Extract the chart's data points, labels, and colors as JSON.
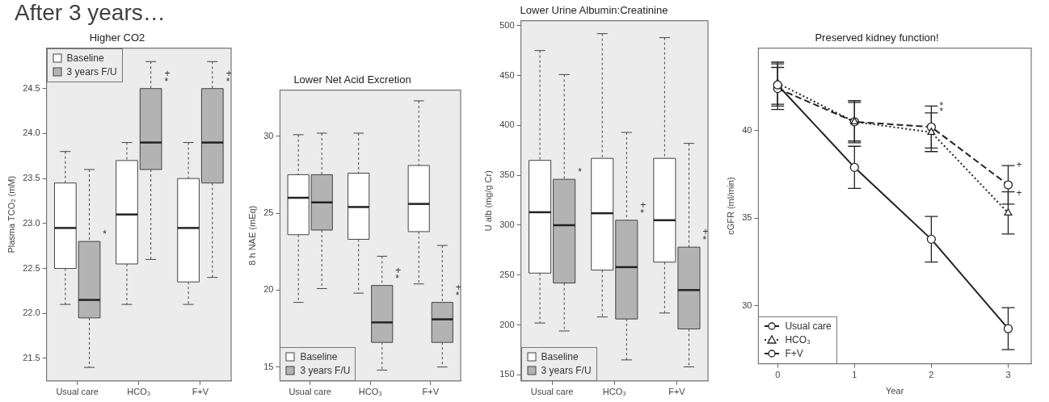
{
  "chart_data": [
    {
      "type": "other",
      "title": "After 3 years…"
    },
    {
      "type": "box",
      "title": "Higher CO2",
      "ylabel": "Plasma TCO₂ (mM)",
      "categories": [
        "Usual care",
        "HCO₃",
        "F+V"
      ],
      "ylim": [
        21.25,
        24.95
      ],
      "yticks": [
        21.5,
        {
          "value": 22,
          "label": "22.0"
        },
        22.5,
        {
          "value": 23,
          "label": "23.0"
        },
        23.5,
        {
          "value": 24,
          "label": "24.0"
        },
        24.5
      ],
      "legend": "top left",
      "series": [
        {
          "name": "Baseline",
          "color": "#ffffff",
          "boxes": [
            {
              "low": 22.1,
              "q1": 22.5,
              "median": 22.95,
              "q3": 23.45,
              "high": 23.8
            },
            {
              "low": 22.1,
              "q1": 22.55,
              "median": 23.1,
              "q3": 23.7,
              "high": 23.9
            },
            {
              "low": 22.1,
              "q1": 22.35,
              "median": 22.95,
              "q3": 23.5,
              "high": 23.9
            }
          ]
        },
        {
          "name": "3 years F/U",
          "color": "#b3b3b3",
          "boxes": [
            {
              "low": 21.4,
              "q1": 21.95,
              "median": 22.15,
              "q3": 22.8,
              "high": 23.6
            },
            {
              "low": 22.6,
              "q1": 23.6,
              "median": 23.9,
              "q3": 24.5,
              "high": 24.8
            },
            {
              "low": 22.4,
              "q1": 23.45,
              "median": 23.9,
              "q3": 24.5,
              "high": 24.8
            }
          ]
        }
      ],
      "annotations": [
        {
          "text": "*",
          "x": "Usual care",
          "y": 22.8
        },
        {
          "text": "+",
          "x": "HCO₃",
          "y": 24.5
        },
        {
          "text": "*",
          "x": "HCO₃",
          "y": 24.5
        },
        {
          "text": "+",
          "x": "F+V",
          "y": 24.5
        },
        {
          "text": "*",
          "x": "F+V",
          "y": 24.5
        }
      ]
    },
    {
      "type": "box",
      "title": "Lower Net Acid Excretion",
      "ylabel": "8 h NAE (mEq)",
      "categories": [
        "Usual care",
        "HCO₃",
        "F+V"
      ],
      "ylim": [
        14.1,
        33
      ],
      "yticks": [
        15,
        20,
        25,
        30
      ],
      "legend": "bottom left",
      "series": [
        {
          "name": "Baseline",
          "color": "#ffffff",
          "boxes": [
            {
              "low": 19.2,
              "q1": 23.6,
              "median": 26.0,
              "q3": 27.5,
              "high": 30.1
            },
            {
              "low": 19.8,
              "q1": 23.3,
              "median": 25.4,
              "q3": 27.6,
              "high": 30.2
            },
            {
              "low": 20.4,
              "q1": 23.8,
              "median": 25.6,
              "q3": 28.1,
              "high": 32.3
            }
          ]
        },
        {
          "name": "3 years F/U",
          "color": "#b3b3b3",
          "boxes": [
            {
              "low": 20.1,
              "q1": 23.9,
              "median": 25.7,
              "q3": 27.5,
              "high": 30.2
            },
            {
              "low": 14.8,
              "q1": 16.6,
              "median": 17.9,
              "q3": 20.3,
              "high": 22.2
            },
            {
              "low": 15.0,
              "q1": 16.6,
              "median": 18.1,
              "q3": 19.2,
              "high": 22.9
            }
          ]
        }
      ],
      "annotations": [
        {
          "text": "+",
          "x": "HCO₃",
          "y": 20.3
        },
        {
          "text": "*",
          "x": "HCO₃",
          "y": 20.3
        },
        {
          "text": "+",
          "x": "F+V",
          "y": 19.2
        },
        {
          "text": "*",
          "x": "F+V",
          "y": 19.2
        }
      ]
    },
    {
      "type": "box",
      "title": "Lower Urine Albumin:Creatinine",
      "ylabel": "U alb (mg/g Cr)",
      "categories": [
        "Usual care",
        "HCO₃",
        "F+V"
      ],
      "ylim": [
        144,
        505
      ],
      "yticks": [
        150,
        200,
        250,
        300,
        350,
        400,
        450,
        500
      ],
      "legend": "bottom left",
      "series": [
        {
          "name": "Baseline",
          "color": "#ffffff",
          "boxes": [
            {
              "low": 202,
              "q1": 252,
              "median": 313,
              "q3": 365,
              "high": 475
            },
            {
              "low": 208,
              "q1": 255,
              "median": 312,
              "q3": 367,
              "high": 492
            },
            {
              "low": 212,
              "q1": 263,
              "median": 305,
              "q3": 367,
              "high": 488
            }
          ]
        },
        {
          "name": "3 years F/U",
          "color": "#b3b3b3",
          "boxes": [
            {
              "low": 194,
              "q1": 242,
              "median": 300,
              "q3": 346,
              "high": 451
            },
            {
              "low": 165,
              "q1": 206,
              "median": 258,
              "q3": 305,
              "high": 393
            },
            {
              "low": 158,
              "q1": 196,
              "median": 235,
              "q3": 278,
              "high": 382
            }
          ]
        }
      ],
      "annotations": [
        {
          "text": "*",
          "x": "Usual care",
          "y": 346
        },
        {
          "text": "+",
          "x": "HCO₃",
          "y": 305
        },
        {
          "text": "*",
          "x": "HCO₃",
          "y": 305
        },
        {
          "text": "+",
          "x": "F+V",
          "y": 278
        },
        {
          "text": "*",
          "x": "F+V",
          "y": 278
        }
      ]
    },
    {
      "type": "line",
      "title": "Preserved kidney function!",
      "xlabel": "Year",
      "ylabel": "cGFR (ml/min)",
      "x": [
        0,
        1,
        2,
        3
      ],
      "xlim": [
        -0.25,
        3.3
      ],
      "xticks": [
        0,
        1,
        2,
        3
      ],
      "ylim": [
        26.7,
        44.7
      ],
      "yticks": [
        30,
        35,
        40
      ],
      "legend": "bottom left",
      "series": [
        {
          "name": "Usual care",
          "color": "#222222",
          "marker": "circle",
          "line_style": "solid",
          "values": [
            42.6,
            37.9,
            33.8,
            28.7
          ],
          "errors": [
            1.2,
            1.2,
            1.3,
            1.2
          ]
        },
        {
          "name": "HCO₃",
          "color": "#222222",
          "marker": "triangle",
          "line_style": "dotted",
          "values": [
            42.7,
            40.5,
            39.9,
            35.3
          ],
          "errors": [
            1.2,
            1.1,
            1.1,
            1.2
          ]
        },
        {
          "name": "F+V",
          "color": "#222222",
          "marker": "circle",
          "line_style": "dashed",
          "values": [
            42.4,
            40.5,
            40.2,
            36.9
          ],
          "errors": [
            1.2,
            1.2,
            1.2,
            1.1
          ]
        }
      ],
      "annotations": [
        {
          "text": "*",
          "x": 2,
          "y": 41.4
        },
        {
          "text": "*",
          "x": 2,
          "y": 41.05
        },
        {
          "text": "+",
          "x": 3,
          "y": 38.0
        },
        {
          "text": "+",
          "x": 3,
          "y": 36.4
        }
      ]
    }
  ]
}
